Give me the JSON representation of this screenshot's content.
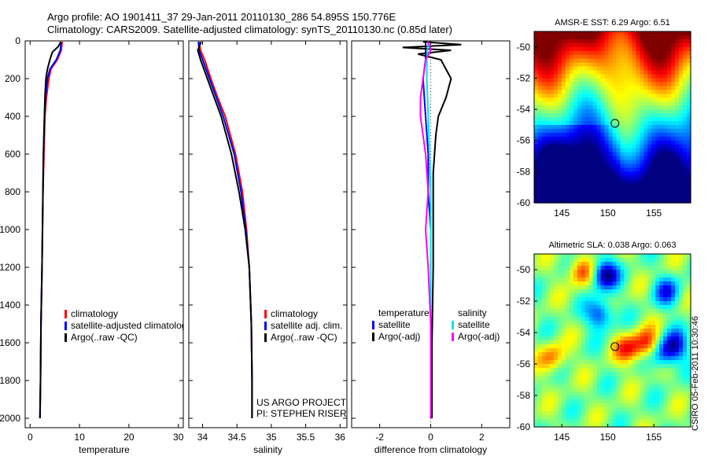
{
  "header": {
    "line1": "Argo profile: AO 1901411_37 29-Jan-2011 20110130_286 54.895S 150.776E",
    "line2": "Climatology: CARS2009. Satellite-adjusted climatology: synTS_20110130.nc (0.85d later)"
  },
  "side_label": "CSIRO 05-Feb-2011 10:30:46",
  "colors": {
    "clim": "#ff0000",
    "sat": "#0000ff",
    "argo": "#000000",
    "t_diff_sat": "#0000ff",
    "s_diff_sat": "#00e5e5",
    "s_diff_argo": "#ff00ff"
  },
  "chart_data": [
    {
      "type": "line",
      "xlabel": "temperature",
      "ylim": [
        2050,
        0
      ],
      "xlim": [
        -1,
        31
      ],
      "xticks": [
        0,
        10,
        20,
        30
      ],
      "yticks": [
        0,
        200,
        400,
        600,
        800,
        1000,
        1200,
        1400,
        1600,
        1800,
        2000
      ],
      "legend": [
        "climatology",
        "satellite-adjusted climatology",
        "Argo(..raw -QC)"
      ],
      "legend_position": "lower-right",
      "series": [
        {
          "name": "climatology",
          "color": "#ff0000",
          "depth": [
            5,
            50,
            100,
            150,
            200,
            300,
            400,
            600,
            800,
            1000,
            1200,
            1500,
            1800,
            2000
          ],
          "values": [
            6.5,
            6.3,
            5.5,
            4.2,
            3.8,
            3.3,
            3.0,
            2.8,
            2.6,
            2.5,
            2.4,
            2.2,
            2.1,
            2.0
          ]
        },
        {
          "name": "satellite-adjusted climatology",
          "color": "#0000ff",
          "depth": [
            5,
            50,
            100,
            150,
            200,
            300,
            400,
            600,
            800,
            1000,
            1200,
            1500,
            1800,
            2000
          ],
          "values": [
            6.3,
            6.1,
            5.3,
            4.0,
            3.5,
            3.1,
            2.9,
            2.7,
            2.6,
            2.5,
            2.4,
            2.2,
            2.1,
            2.0
          ]
        },
        {
          "name": "Argo(..raw -QC)",
          "color": "#000000",
          "depth": [
            5,
            30,
            60,
            100,
            150,
            200,
            300,
            400,
            600,
            800,
            1000,
            1200,
            1500,
            1800,
            2000
          ],
          "values": [
            6.2,
            5.7,
            4.5,
            4.0,
            3.5,
            3.2,
            3.0,
            2.9,
            2.7,
            2.6,
            2.5,
            2.4,
            2.2,
            2.1,
            2.0
          ]
        }
      ]
    },
    {
      "type": "line",
      "xlabel": "salinity",
      "ylim": [
        2050,
        0
      ],
      "xlim": [
        33.8,
        36.1
      ],
      "xticks": [
        34,
        34.5,
        35,
        35.5,
        36
      ],
      "legend": [
        "climatology",
        "satellite adj. clim.",
        "Argo(..raw -QC)"
      ],
      "legend_position": "lower-right",
      "annotation": [
        "US ARGO PROJECT",
        "PI: STEPHEN RISER"
      ],
      "series": [
        {
          "name": "climatology",
          "color": "#ff0000",
          "depth": [
            5,
            50,
            100,
            200,
            300,
            400,
            600,
            800,
            1000,
            1200,
            1500,
            1800,
            2000
          ],
          "values": [
            33.95,
            33.97,
            34.03,
            34.12,
            34.22,
            34.33,
            34.48,
            34.58,
            34.64,
            34.68,
            34.71,
            34.72,
            34.72
          ]
        },
        {
          "name": "satellite adj. clim.",
          "color": "#0000ff",
          "depth": [
            5,
            50,
            100,
            200,
            300,
            400,
            600,
            800,
            1000,
            1200,
            1500,
            1800,
            2000
          ],
          "values": [
            33.94,
            33.95,
            34.0,
            34.1,
            34.2,
            34.3,
            34.46,
            34.56,
            34.63,
            34.68,
            34.71,
            34.72,
            34.72
          ]
        },
        {
          "name": "Argo(..raw -QC)",
          "color": "#000000",
          "depth": [
            5,
            50,
            100,
            200,
            300,
            400,
            600,
            800,
            1000,
            1200,
            1500,
            1800,
            2000
          ],
          "values": [
            33.98,
            33.93,
            33.97,
            34.07,
            34.17,
            34.27,
            34.42,
            34.53,
            34.62,
            34.68,
            34.71,
            34.72,
            34.72
          ]
        }
      ]
    },
    {
      "type": "line",
      "xlabel": "difference from climatology",
      "ylim": [
        2050,
        0
      ],
      "xlim": [
        -3.1,
        3.1
      ],
      "xticks": [
        -2,
        0,
        2
      ],
      "legend_temperature": [
        "temperature",
        "satellite",
        "Argo(-adj)"
      ],
      "legend_salinity": [
        "salinity",
        "satellite",
        "Argo(-adj)"
      ],
      "legend_position": "lower-right",
      "series": [
        {
          "name": "temperature satellite",
          "color": "#0000ff",
          "depth": [
            5,
            50,
            100,
            200,
            400,
            600,
            800,
            1000,
            1500,
            2000
          ],
          "values": [
            -0.2,
            -0.2,
            -0.2,
            -0.3,
            -0.2,
            -0.1,
            -0.1,
            0.0,
            0.0,
            0.0
          ]
        },
        {
          "name": "temperature Argo(-adj)",
          "color": "#000000",
          "depth": [
            5,
            20,
            35,
            50,
            70,
            100,
            200,
            300,
            400,
            500,
            700,
            900,
            1200,
            1600,
            2000
          ],
          "values": [
            -0.3,
            1.2,
            -1.1,
            0.8,
            -0.5,
            0.4,
            0.8,
            0.6,
            0.3,
            0.2,
            0.1,
            0.1,
            0.1,
            0.05,
            0.05
          ]
        },
        {
          "name": "salinity satellite",
          "color": "#00e5e5",
          "depth": [
            5,
            100,
            200,
            400,
            600,
            800,
            1000,
            1500,
            2000
          ],
          "values": [
            -0.1,
            -0.15,
            -0.15,
            -0.1,
            -0.05,
            0.0,
            0.0,
            0.0,
            0.0
          ]
        },
        {
          "name": "salinity Argo(-adj)",
          "color": "#ff00ff",
          "depth": [
            5,
            50,
            100,
            200,
            300,
            400,
            600,
            800,
            1000,
            1200,
            1500,
            2000
          ],
          "values": [
            -0.1,
            0.0,
            -0.2,
            -0.3,
            -0.4,
            -0.4,
            -0.2,
            -0.1,
            -0.2,
            -0.1,
            0.0,
            0.0
          ]
        }
      ]
    },
    {
      "type": "heatmap",
      "title": "AMSR-E SST: 6.29 Argo: 6.51",
      "xlim": [
        142,
        159
      ],
      "ylim": [
        -60,
        -49
      ],
      "xticks": [
        145,
        150,
        155
      ],
      "yticks": [
        -50,
        -52,
        -54,
        -56,
        -58,
        -60
      ],
      "marker": [
        150.776,
        -54.895
      ]
    },
    {
      "type": "heatmap",
      "title": "Altimetric SLA: 0.038 Argo: 0.063",
      "xlim": [
        142,
        159
      ],
      "ylim": [
        -60,
        -49
      ],
      "xticks": [
        145,
        150,
        155
      ],
      "yticks": [
        -50,
        -52,
        -54,
        -56,
        -58,
        -60
      ],
      "marker": [
        150.776,
        -54.895
      ]
    }
  ]
}
